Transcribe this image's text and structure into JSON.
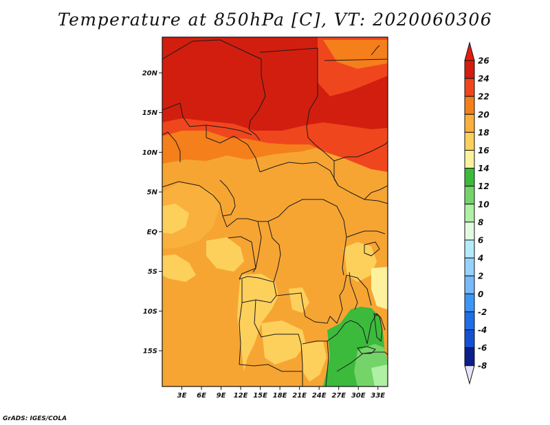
{
  "title": "Temperature at 850hPa [C], VT: 2020060306",
  "footer": "GrADS: IGES/COLA",
  "map": {
    "lat_range": [
      -19.5,
      24.5
    ],
    "lon_range": [
      0,
      34.5
    ],
    "lat_ticks": [
      "20N",
      "15N",
      "10N",
      "5N",
      "EQ",
      "5S",
      "10S",
      "15S"
    ],
    "lon_ticks": [
      "3E",
      "6E",
      "9E",
      "12E",
      "15E",
      "18E",
      "21E",
      "24E",
      "27E",
      "30E",
      "33E"
    ]
  },
  "colorbar": {
    "labels": [
      "26",
      "24",
      "22",
      "20",
      "18",
      "16",
      "14",
      "12",
      "10",
      "8",
      "6",
      "4",
      "2",
      "0",
      "-2",
      "-4",
      "-6",
      "-8"
    ],
    "colors": [
      "#a0000f",
      "#d21e0f",
      "#f0461e",
      "#f57f1b",
      "#fab03d",
      "#fdd05c",
      "#fdf19d",
      "#3cba3c",
      "#74d46a",
      "#aff0a4",
      "#e1fae1",
      "#b4ebfa",
      "#96d2fa",
      "#78b9fa",
      "#3c96f5",
      "#1e6ee6",
      "#1450d2",
      "#0a1e8c"
    ],
    "top_cap_color": "#e41c0d",
    "bottom_cap_color": "#e6e6fa"
  }
}
